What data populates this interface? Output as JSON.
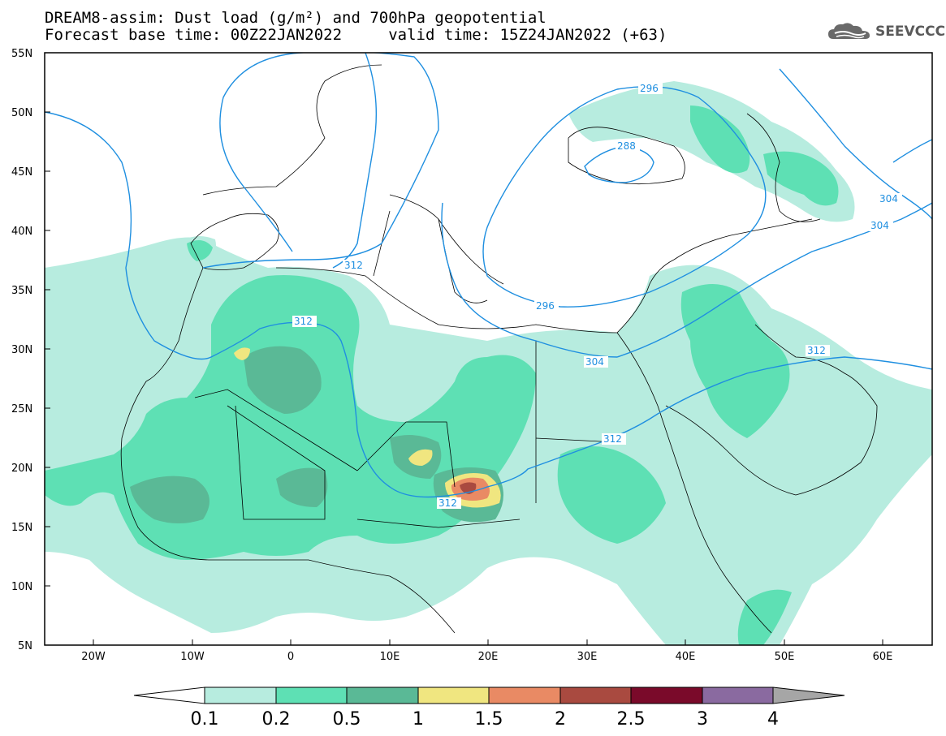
{
  "title_line1": "DREAM8-assim: Dust load (g/m²) and 700hPa geopotential",
  "title_line2": "Forecast base time: 00Z22JAN2022     valid time: 15Z24JAN2022 (+63)",
  "logo": {
    "text": "SEEVCCC",
    "icon": "cloud-logo-icon"
  },
  "colors": {
    "contour": "#1f8fe0",
    "level_0_1": "#b7ecdf",
    "level_0_2": "#5ee0b4",
    "level_0_5": "#5ab996",
    "level_1": "#f0e680",
    "level_1_5": "#e98a64",
    "level_2": "#a94a40",
    "level_2_5": "#7a0a2a",
    "level_3": "#8a6aa0",
    "level_4": "#a6a6a6"
  },
  "map": {
    "lat_labels": [
      "55N",
      "50N",
      "45N",
      "40N",
      "35N",
      "30N",
      "25N",
      "20N",
      "15N",
      "10N",
      "5N"
    ],
    "lon_labels": [
      "20W",
      "10W",
      "0",
      "10E",
      "20E",
      "30E",
      "40E",
      "50E",
      "60E"
    ],
    "contours": [
      {
        "label": "312",
        "pos": "west"
      },
      {
        "label": "312",
        "pos": "north-africa"
      },
      {
        "label": "312",
        "pos": "sahel"
      },
      {
        "label": "312",
        "pos": "sudan"
      },
      {
        "label": "312",
        "pos": "arabia"
      },
      {
        "label": "304",
        "pos": "egypt"
      },
      {
        "label": "304",
        "pos": "caspian"
      },
      {
        "label": "304",
        "pos": "east"
      },
      {
        "label": "296",
        "pos": "mediterranean"
      },
      {
        "label": "296",
        "pos": "black-sea"
      },
      {
        "label": "288",
        "pos": "crimea"
      }
    ]
  },
  "colorbar": {
    "labels": [
      "0.1",
      "0.2",
      "0.5",
      "1",
      "1.5",
      "2",
      "2.5",
      "3",
      "4"
    ]
  }
}
